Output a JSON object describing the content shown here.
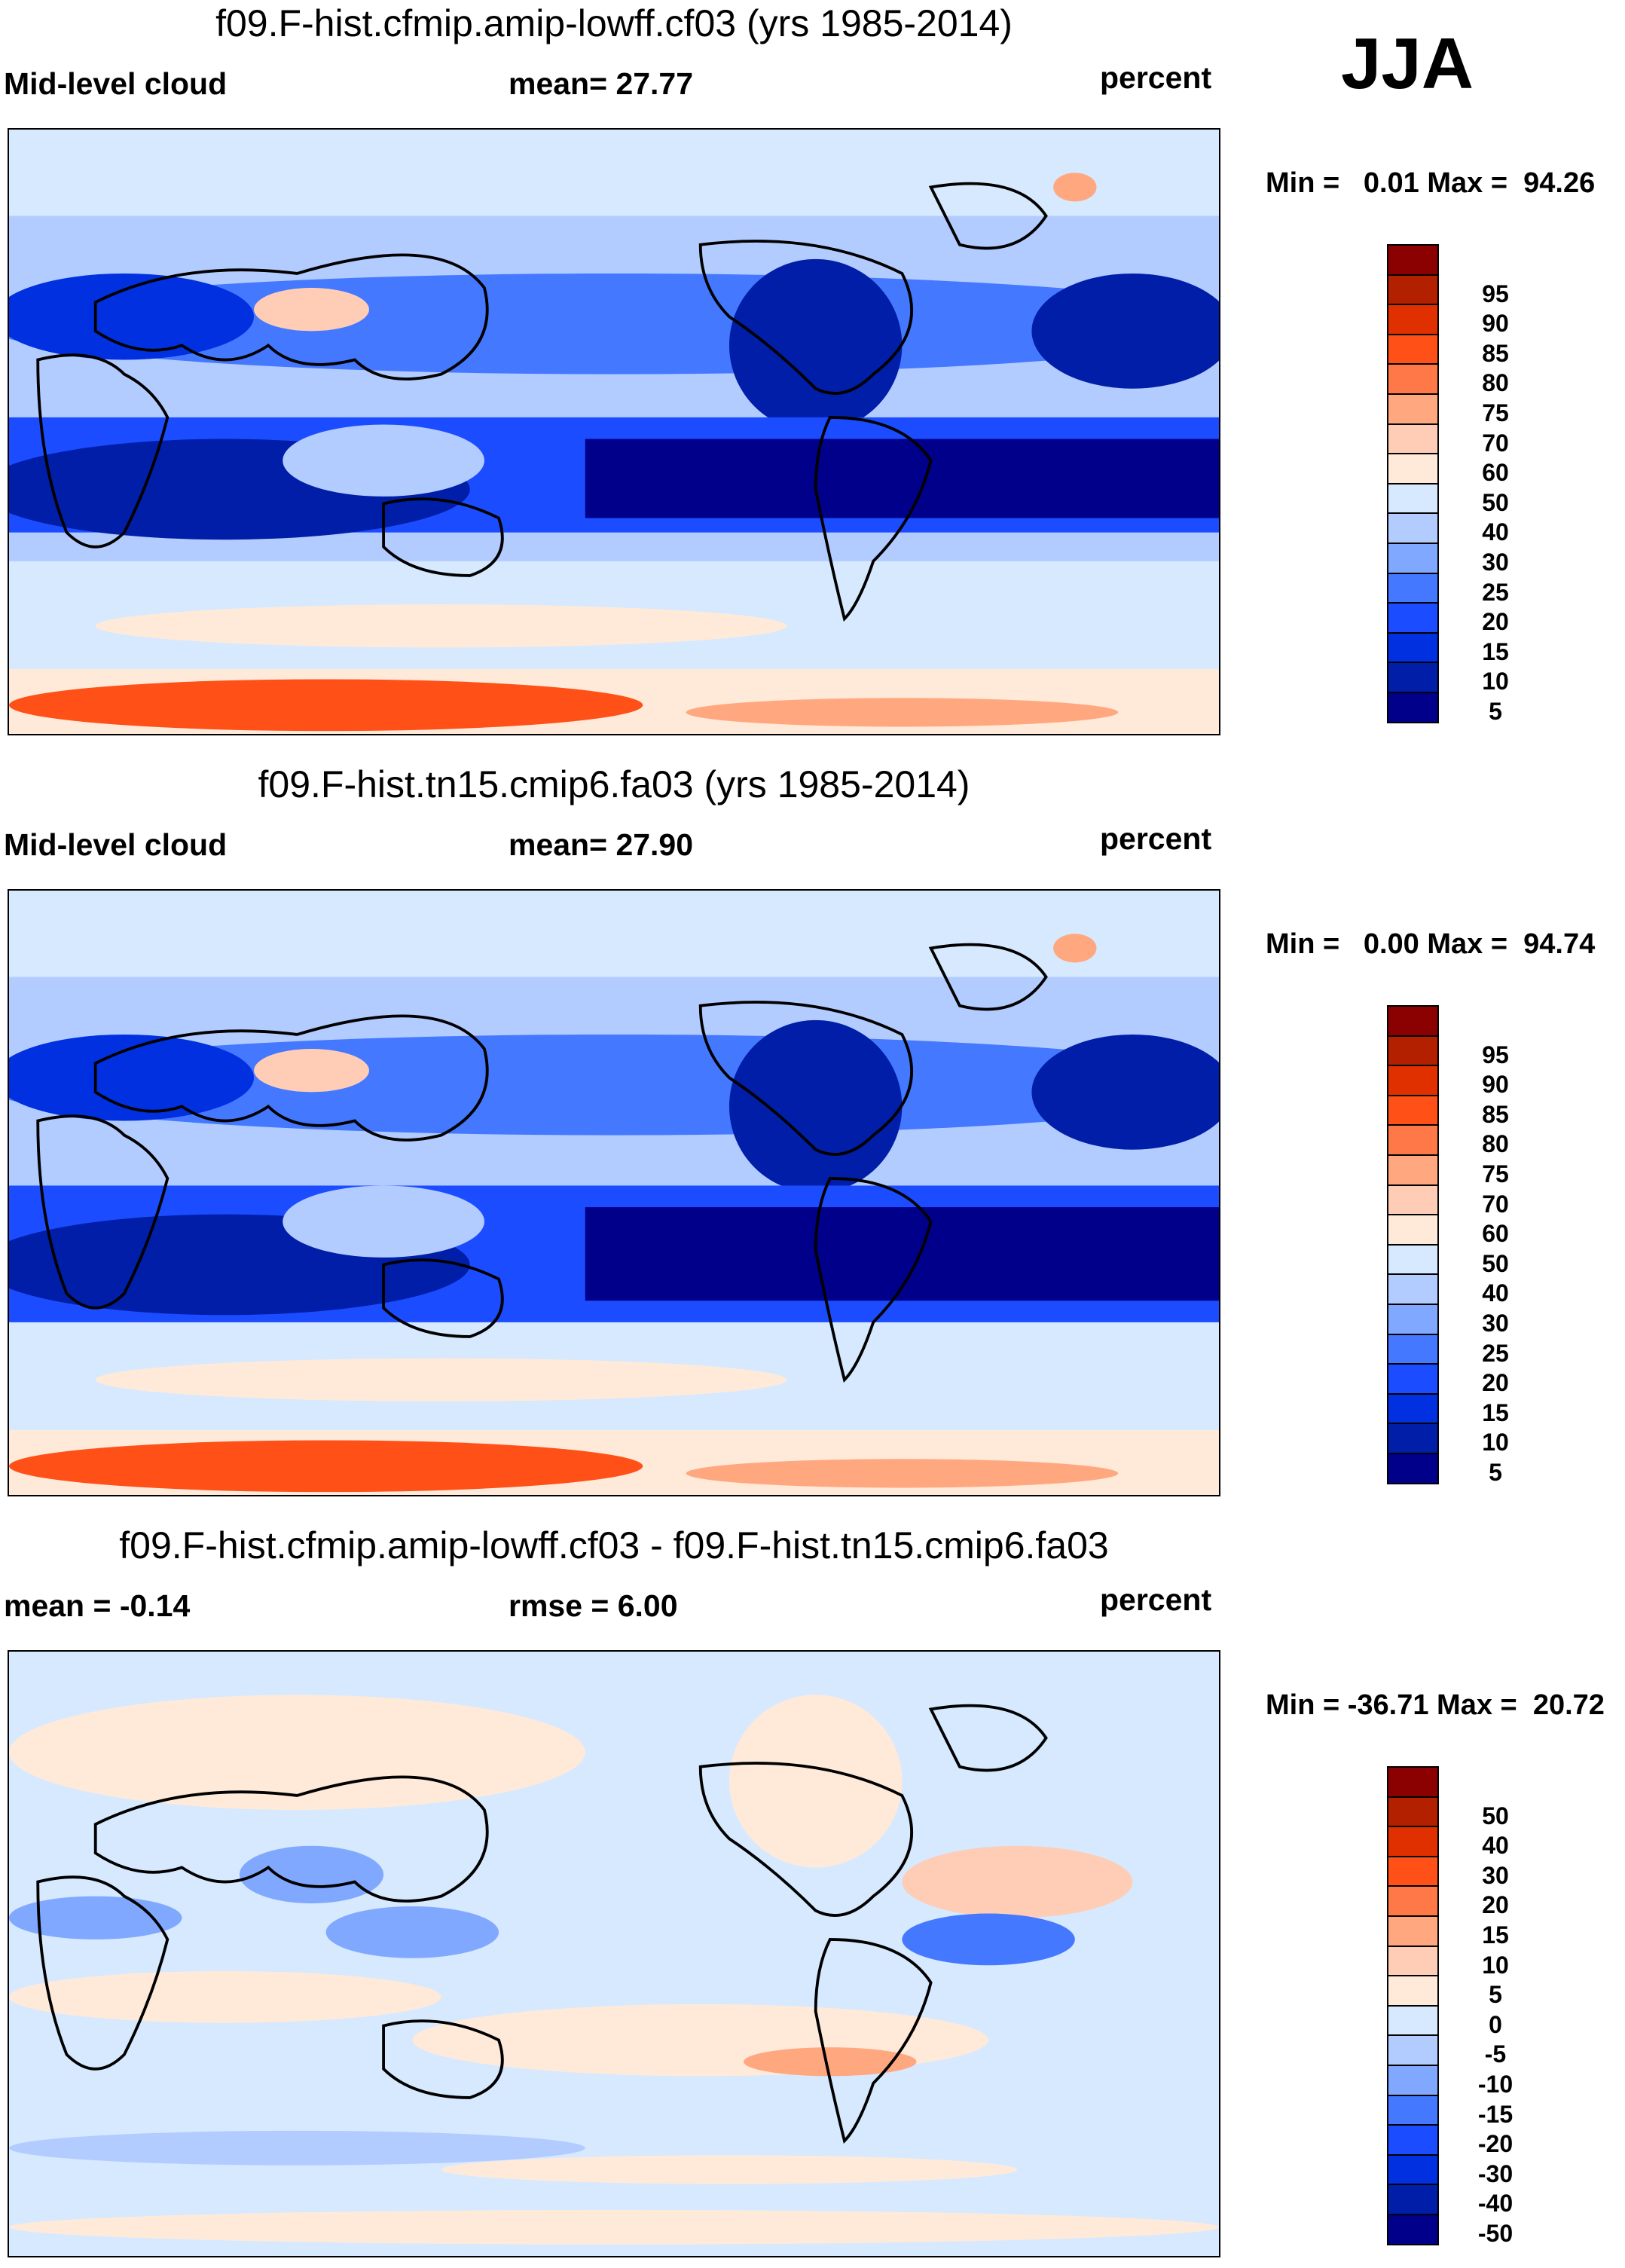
{
  "season": "JJA",
  "colors": [
    "#00008b",
    "#001ea8",
    "#0030e0",
    "#1c4cff",
    "#4478ff",
    "#80a8ff",
    "#b3ccff",
    "#d6e9ff",
    "#ffeada",
    "#ffcdb5",
    "#ffa880",
    "#ff7848",
    "#ff5018",
    "#e03000",
    "#b22000",
    "#8b0000"
  ],
  "chart_data": [
    {
      "type": "heatmap",
      "title": "f09.F-hist.cfmip.amip-lowff.cf03 (yrs 1985-2014)",
      "left_label": "Mid-level cloud",
      "center_label": "mean=  27.77",
      "units": "percent",
      "minmax": "Min =   0.01 Max =  94.26",
      "levels": [
        "5",
        "10",
        "15",
        "20",
        "25",
        "30",
        "40",
        "50",
        "60",
        "70",
        "75",
        "80",
        "85",
        "90",
        "95"
      ]
    },
    {
      "type": "heatmap",
      "title": "f09.F-hist.tn15.cmip6.fa03 (yrs 1985-2014)",
      "left_label": "Mid-level cloud",
      "center_label": "mean=  27.90",
      "units": "percent",
      "minmax": "Min =   0.00 Max =  94.74",
      "levels": [
        "5",
        "10",
        "15",
        "20",
        "25",
        "30",
        "40",
        "50",
        "60",
        "70",
        "75",
        "80",
        "85",
        "90",
        "95"
      ]
    },
    {
      "type": "heatmap",
      "title": "f09.F-hist.cfmip.amip-lowff.cf03 - f09.F-hist.tn15.cmip6.fa03",
      "left_label": "mean =  -0.14",
      "center_label": "rmse =   6.00",
      "units": "percent",
      "minmax": "Min = -36.71 Max =  20.72",
      "levels": [
        "-50",
        "-40",
        "-30",
        "-20",
        "-15",
        "-10",
        "-5",
        "0",
        "5",
        "10",
        "15",
        "20",
        "30",
        "40",
        "50"
      ]
    }
  ]
}
